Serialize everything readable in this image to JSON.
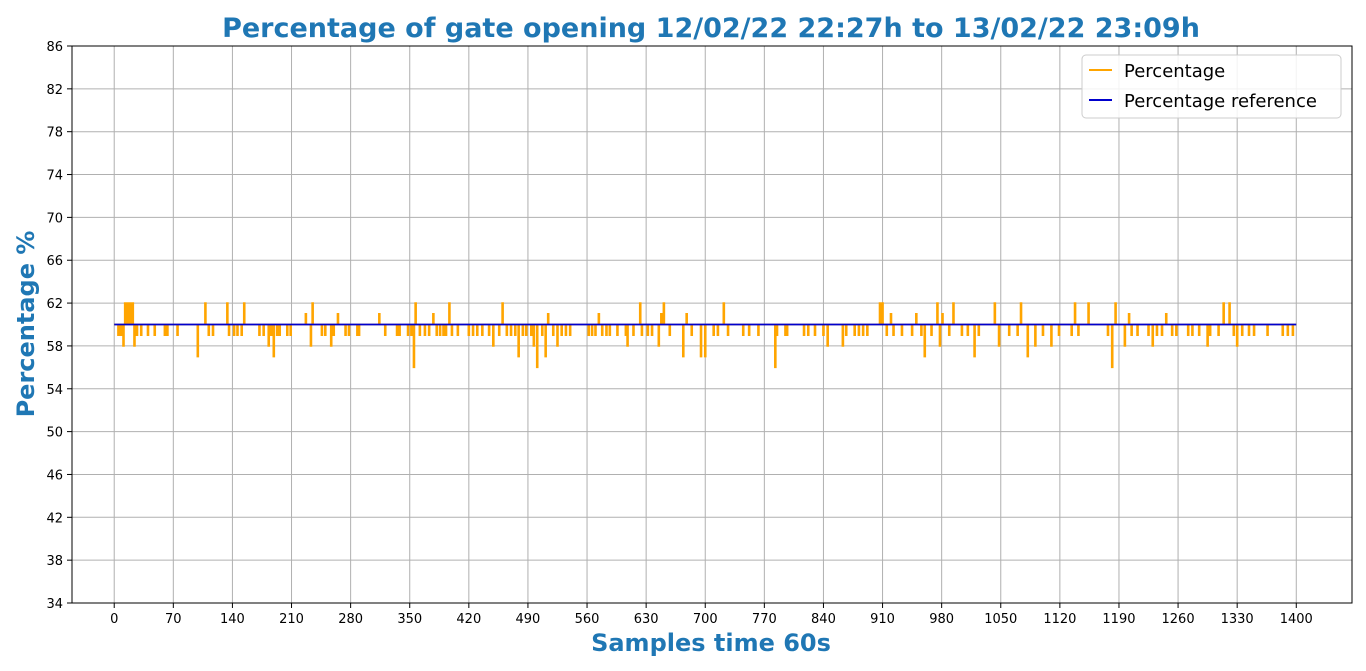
{
  "chart_data": {
    "type": "line",
    "title": "Percentage of gate opening 12/02/22 22:27h to 13/02/22 23:09h",
    "xlabel": "Samples time 60s",
    "ylabel": "Percentage %",
    "xlim": [
      -50,
      1466
    ],
    "ylim": [
      34,
      86
    ],
    "xticks": [
      0,
      70,
      140,
      210,
      280,
      350,
      420,
      490,
      560,
      630,
      700,
      770,
      840,
      910,
      980,
      1050,
      1120,
      1190,
      1260,
      1330,
      1400
    ],
    "yticks": [
      34,
      38,
      42,
      46,
      50,
      54,
      58,
      62,
      66,
      70,
      74,
      78,
      82,
      86
    ],
    "grid": true,
    "legend_position": "top-right",
    "colors": {
      "title": "#1f77b4",
      "axis_label": "#1f77b4",
      "percentage": "#ffa500",
      "reference": "#0000cd",
      "grid": "#b0b0b0"
    },
    "series": [
      {
        "name": "Percentage",
        "color": "#ffa500",
        "baseline": 60,
        "spikes": [
          [
            5,
            59
          ],
          [
            8,
            59
          ],
          [
            11,
            58
          ],
          [
            13,
            62
          ],
          [
            15,
            62
          ],
          [
            17,
            62
          ],
          [
            19,
            62
          ],
          [
            22,
            62
          ],
          [
            24,
            58
          ],
          [
            27,
            59
          ],
          [
            32,
            59
          ],
          [
            40,
            59
          ],
          [
            48,
            59
          ],
          [
            60,
            59
          ],
          [
            63,
            59
          ],
          [
            75,
            59
          ],
          [
            99,
            57
          ],
          [
            108,
            62
          ],
          [
            112,
            59
          ],
          [
            117,
            59
          ],
          [
            134,
            62
          ],
          [
            136,
            59
          ],
          [
            142,
            59
          ],
          [
            146,
            59
          ],
          [
            151,
            59
          ],
          [
            154,
            62
          ],
          [
            172,
            59
          ],
          [
            177,
            59
          ],
          [
            183,
            58
          ],
          [
            186,
            59
          ],
          [
            189,
            57
          ],
          [
            193,
            59
          ],
          [
            196,
            59
          ],
          [
            205,
            59
          ],
          [
            209,
            59
          ],
          [
            227,
            61
          ],
          [
            233,
            58
          ],
          [
            235,
            62
          ],
          [
            246,
            59
          ],
          [
            250,
            59
          ],
          [
            257,
            58
          ],
          [
            260,
            59
          ],
          [
            265,
            61
          ],
          [
            274,
            59
          ],
          [
            278,
            59
          ],
          [
            288,
            59
          ],
          [
            290,
            59
          ],
          [
            314,
            61
          ],
          [
            321,
            59
          ],
          [
            335,
            59
          ],
          [
            338,
            59
          ],
          [
            348,
            59
          ],
          [
            352,
            59
          ],
          [
            355,
            56
          ],
          [
            357,
            62
          ],
          [
            362,
            59
          ],
          [
            368,
            59
          ],
          [
            373,
            59
          ],
          [
            378,
            61
          ],
          [
            382,
            59
          ],
          [
            386,
            59
          ],
          [
            390,
            59
          ],
          [
            393,
            59
          ],
          [
            397,
            62
          ],
          [
            400,
            59
          ],
          [
            407,
            59
          ],
          [
            420,
            59
          ],
          [
            425,
            59
          ],
          [
            430,
            59
          ],
          [
            436,
            59
          ],
          [
            444,
            59
          ],
          [
            449,
            58
          ],
          [
            456,
            59
          ],
          [
            460,
            62
          ],
          [
            465,
            59
          ],
          [
            470,
            59
          ],
          [
            475,
            59
          ],
          [
            479,
            57
          ],
          [
            484,
            59
          ],
          [
            488,
            59
          ],
          [
            494,
            59
          ],
          [
            497,
            58
          ],
          [
            501,
            56
          ],
          [
            507,
            59
          ],
          [
            511,
            57
          ],
          [
            514,
            61
          ],
          [
            520,
            59
          ],
          [
            525,
            58
          ],
          [
            530,
            59
          ],
          [
            535,
            59
          ],
          [
            540,
            59
          ],
          [
            562,
            59
          ],
          [
            566,
            59
          ],
          [
            570,
            59
          ],
          [
            574,
            61
          ],
          [
            578,
            59
          ],
          [
            583,
            59
          ],
          [
            587,
            59
          ],
          [
            596,
            59
          ],
          [
            606,
            59
          ],
          [
            608,
            58
          ],
          [
            615,
            59
          ],
          [
            623,
            62
          ],
          [
            625,
            59
          ],
          [
            632,
            59
          ],
          [
            637,
            59
          ],
          [
            645,
            58
          ],
          [
            648,
            61
          ],
          [
            651,
            62
          ],
          [
            658,
            59
          ],
          [
            674,
            57
          ],
          [
            678,
            61
          ],
          [
            684,
            59
          ],
          [
            695,
            57
          ],
          [
            700,
            57
          ],
          [
            710,
            59
          ],
          [
            715,
            59
          ],
          [
            722,
            62
          ],
          [
            727,
            59
          ],
          [
            745,
            59
          ],
          [
            752,
            59
          ],
          [
            763,
            59
          ],
          [
            783,
            56
          ],
          [
            785,
            59
          ],
          [
            795,
            59
          ],
          [
            797,
            59
          ],
          [
            817,
            59
          ],
          [
            822,
            59
          ],
          [
            830,
            59
          ],
          [
            840,
            59
          ],
          [
            845,
            58
          ],
          [
            863,
            58
          ],
          [
            867,
            59
          ],
          [
            877,
            59
          ],
          [
            882,
            59
          ],
          [
            887,
            59
          ],
          [
            892,
            59
          ],
          [
            907,
            62
          ],
          [
            910,
            62
          ],
          [
            915,
            59
          ],
          [
            920,
            61
          ],
          [
            923,
            59
          ],
          [
            933,
            59
          ],
          [
            945,
            59
          ],
          [
            950,
            61
          ],
          [
            956,
            59
          ],
          [
            960,
            57
          ],
          [
            968,
            59
          ],
          [
            975,
            62
          ],
          [
            978,
            58
          ],
          [
            981,
            61
          ],
          [
            989,
            59
          ],
          [
            994,
            62
          ],
          [
            1004,
            59
          ],
          [
            1011,
            59
          ],
          [
            1019,
            57
          ],
          [
            1024,
            59
          ],
          [
            1043,
            62
          ],
          [
            1048,
            58
          ],
          [
            1060,
            59
          ],
          [
            1070,
            59
          ],
          [
            1074,
            62
          ],
          [
            1082,
            57
          ],
          [
            1091,
            58
          ],
          [
            1100,
            59
          ],
          [
            1110,
            58
          ],
          [
            1119,
            59
          ],
          [
            1134,
            59
          ],
          [
            1138,
            62
          ],
          [
            1142,
            59
          ],
          [
            1154,
            62
          ],
          [
            1177,
            59
          ],
          [
            1182,
            56
          ],
          [
            1186,
            62
          ],
          [
            1197,
            58
          ],
          [
            1202,
            61
          ],
          [
            1205,
            59
          ],
          [
            1212,
            59
          ],
          [
            1225,
            59
          ],
          [
            1230,
            58
          ],
          [
            1235,
            59
          ],
          [
            1241,
            59
          ],
          [
            1246,
            61
          ],
          [
            1253,
            59
          ],
          [
            1258,
            59
          ],
          [
            1272,
            59
          ],
          [
            1277,
            59
          ],
          [
            1285,
            59
          ],
          [
            1295,
            58
          ],
          [
            1298,
            59
          ],
          [
            1308,
            59
          ],
          [
            1314,
            62
          ],
          [
            1321,
            62
          ],
          [
            1326,
            59
          ],
          [
            1330,
            58
          ],
          [
            1336,
            59
          ],
          [
            1344,
            59
          ],
          [
            1350,
            59
          ],
          [
            1366,
            59
          ],
          [
            1384,
            59
          ],
          [
            1390,
            59
          ],
          [
            1396,
            59
          ]
        ]
      },
      {
        "name": "Percentage reference",
        "color": "#0000cd",
        "x": [
          0,
          1400
        ],
        "values": [
          60,
          60
        ]
      }
    ]
  }
}
